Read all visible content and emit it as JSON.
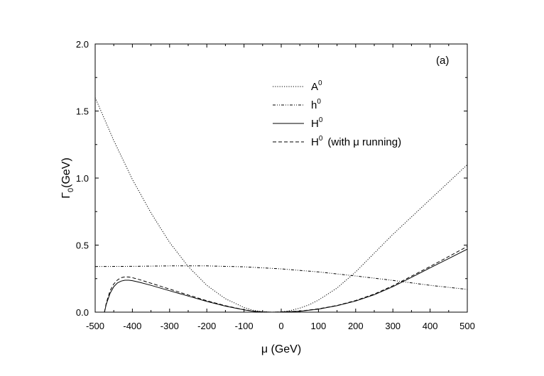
{
  "chart_data": {
    "type": "line",
    "panel_label": "(a)",
    "xlabel": "μ (GeV)",
    "ylabel_main": "Γ",
    "ylabel_sub": "0",
    "ylabel_rest": "(GeV)",
    "xlim": [
      -500,
      500
    ],
    "ylim": [
      0,
      2.0
    ],
    "xticks": [
      -500,
      -400,
      -300,
      -200,
      -100,
      0,
      100,
      200,
      300,
      400,
      500
    ],
    "xtick_labels": [
      "-500",
      "-400",
      "-300",
      "-200",
      "-100",
      "0",
      "100",
      "200",
      "300",
      "400",
      "500"
    ],
    "yticks": [
      0,
      0.5,
      1.0,
      1.5,
      2.0
    ],
    "ytick_labels": [
      "0.0",
      "0.5",
      "1.0",
      "1.5",
      "2.0"
    ],
    "grid": false,
    "legend_position": "upper-center",
    "series": [
      {
        "name": "A0",
        "label_main": "A",
        "label_sup": "0",
        "label_suffix": "",
        "style": "dotted",
        "x": [
          -500,
          -450,
          -400,
          -350,
          -300,
          -250,
          -200,
          -150,
          -100,
          -75,
          -50,
          -25,
          0,
          25,
          50,
          75,
          100,
          150,
          200,
          250,
          300,
          350,
          400,
          450,
          500
        ],
        "y": [
          1.6,
          1.28,
          0.99,
          0.74,
          0.52,
          0.34,
          0.2,
          0.1,
          0.035,
          0.014,
          0.003,
          0.0,
          0.002,
          0.012,
          0.03,
          0.055,
          0.09,
          0.18,
          0.3,
          0.44,
          0.58,
          0.71,
          0.84,
          0.97,
          1.1
        ]
      },
      {
        "name": "h0",
        "label_main": "h",
        "label_sup": "0",
        "label_suffix": "",
        "style": "dashdotdot",
        "x": [
          -500,
          -400,
          -300,
          -200,
          -100,
          0,
          100,
          200,
          300,
          400,
          500
        ],
        "y": [
          0.34,
          0.342,
          0.345,
          0.345,
          0.338,
          0.323,
          0.3,
          0.27,
          0.237,
          0.2,
          0.17
        ]
      },
      {
        "name": "H0",
        "label_main": "H",
        "label_sup": "0",
        "label_suffix": "",
        "style": "solid",
        "x": [
          -475,
          -470,
          -460,
          -450,
          -440,
          -430,
          -420,
          -410,
          -400,
          -380,
          -350,
          -300,
          -250,
          -200,
          -150,
          -100,
          -75,
          -50,
          -25,
          0,
          50,
          100,
          150,
          200,
          250,
          300,
          350,
          400,
          450,
          500
        ],
        "y": [
          0.0,
          0.06,
          0.14,
          0.19,
          0.218,
          0.232,
          0.238,
          0.238,
          0.235,
          0.222,
          0.2,
          0.16,
          0.12,
          0.08,
          0.045,
          0.017,
          0.007,
          0.002,
          0.0,
          0.001,
          0.007,
          0.023,
          0.048,
          0.083,
          0.13,
          0.19,
          0.26,
          0.33,
          0.4,
          0.47
        ]
      },
      {
        "name": "H0 (with μ running)",
        "label_main": "H",
        "label_sup": "0",
        "label_suffix": "(with  μ  running)",
        "style": "dashed",
        "x": [
          -475,
          -470,
          -460,
          -450,
          -440,
          -430,
          -420,
          -410,
          -400,
          -380,
          -350,
          -300,
          -250,
          -200,
          -150,
          -100,
          -75,
          -50,
          -25,
          0,
          50,
          100,
          150,
          200,
          250,
          300,
          350,
          400,
          450,
          500
        ],
        "y": [
          0.0,
          0.07,
          0.16,
          0.21,
          0.24,
          0.257,
          0.263,
          0.262,
          0.257,
          0.242,
          0.216,
          0.172,
          0.128,
          0.085,
          0.048,
          0.018,
          0.008,
          0.002,
          0.0,
          0.001,
          0.008,
          0.025,
          0.05,
          0.087,
          0.135,
          0.197,
          0.268,
          0.34,
          0.415,
          0.49
        ]
      }
    ]
  }
}
